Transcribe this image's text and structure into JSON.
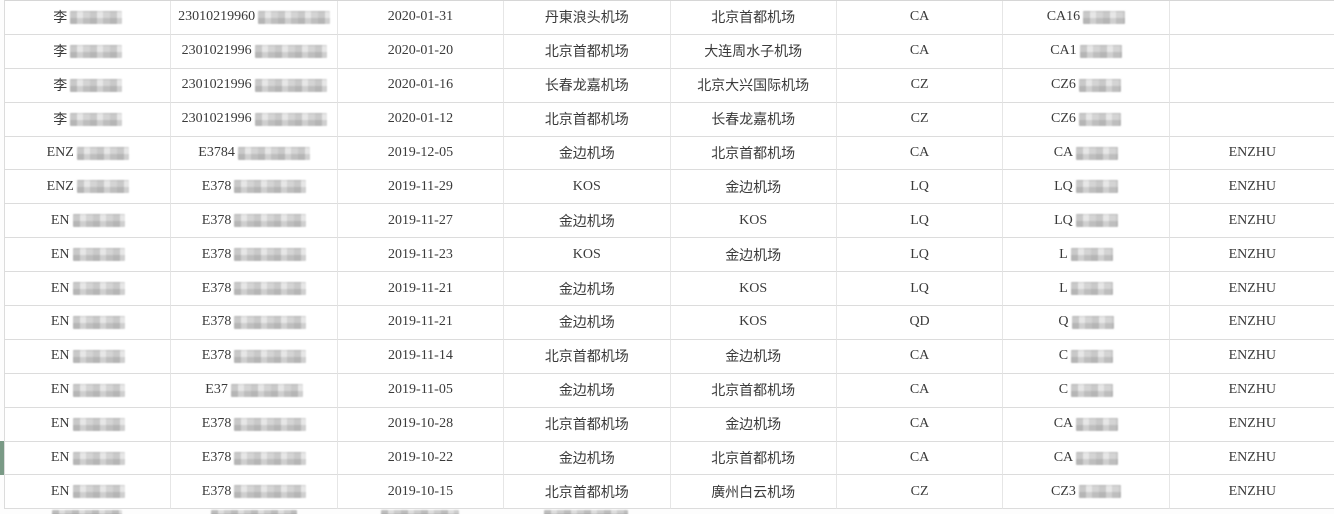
{
  "colors": {
    "accent_green": "#7a9a86",
    "grid_line": "#dcdcdc",
    "text": "#3a3a3a"
  },
  "table": {
    "columns": [
      "passenger-name",
      "id-number",
      "flight-date",
      "departure-airport",
      "arrival-airport",
      "airline-code",
      "flight-number",
      "remark"
    ],
    "rows": [
      {
        "name": "李",
        "name_blur": true,
        "id": "23010219960",
        "id_blur": true,
        "date": "2020-01-31",
        "from": "丹東浪头机场",
        "to": "北京首都机场",
        "airline": "CA",
        "flight": "CA16",
        "flight_blur": true,
        "remark": ""
      },
      {
        "name": "李",
        "name_blur": true,
        "id": "2301021996",
        "id_blur": true,
        "date": "2020-01-20",
        "from": "北京首都机场",
        "to": "大连周水子机场",
        "airline": "CA",
        "flight": "CA1",
        "flight_blur": true,
        "remark": ""
      },
      {
        "name": "李",
        "name_blur": true,
        "id": "2301021996",
        "id_blur": true,
        "date": "2020-01-16",
        "from": "长春龙嘉机场",
        "to": "北京大兴国际机场",
        "airline": "CZ",
        "flight": "CZ6",
        "flight_blur": true,
        "remark": ""
      },
      {
        "name": "李",
        "name_blur": true,
        "id": "2301021996",
        "id_blur": true,
        "date": "2020-01-12",
        "from": "北京首都机场",
        "to": "长春龙嘉机场",
        "airline": "CZ",
        "flight": "CZ6",
        "flight_blur": true,
        "remark": ""
      },
      {
        "name": "ENZ",
        "name_blur": true,
        "id": "E3784",
        "id_blur": true,
        "date": "2019-12-05",
        "from": "金边机场",
        "to": "北京首都机场",
        "airline": "CA",
        "flight": "CA",
        "flight_blur": true,
        "remark": "ENZHU"
      },
      {
        "name": "ENZ",
        "name_blur": true,
        "id": "E378",
        "id_blur": true,
        "date": "2019-11-29",
        "from": "KOS",
        "to": "金边机场",
        "airline": "LQ",
        "flight": "LQ",
        "flight_blur": true,
        "remark": "ENZHU"
      },
      {
        "name": "EN",
        "name_blur": true,
        "id": "E378",
        "id_blur": true,
        "date": "2019-11-27",
        "from": "金边机场",
        "to": "KOS",
        "airline": "LQ",
        "flight": "LQ",
        "flight_blur": true,
        "remark": "ENZHU"
      },
      {
        "name": "EN",
        "name_blur": true,
        "id": "E378",
        "id_blur": true,
        "date": "2019-11-23",
        "from": "KOS",
        "to": "金边机场",
        "airline": "LQ",
        "flight": "L",
        "flight_blur": true,
        "remark": "ENZHU"
      },
      {
        "name": "EN",
        "name_blur": true,
        "id": "E378",
        "id_blur": true,
        "date": "2019-11-21",
        "from": "金边机场",
        "to": "KOS",
        "airline": "LQ",
        "flight": "L",
        "flight_blur": true,
        "remark": "ENZHU"
      },
      {
        "name": "EN",
        "name_blur": true,
        "id": "E378",
        "id_blur": true,
        "date": "2019-11-21",
        "from": "金边机场",
        "to": "KOS",
        "airline": "QD",
        "flight": "Q",
        "flight_blur": true,
        "remark": "ENZHU"
      },
      {
        "name": "EN",
        "name_blur": true,
        "id": "E378",
        "id_blur": true,
        "date": "2019-11-14",
        "from": "北京首都机场",
        "to": "金边机场",
        "airline": "CA",
        "flight": "C",
        "flight_blur": true,
        "remark": "ENZHU"
      },
      {
        "name": "EN",
        "name_blur": true,
        "id": "E37",
        "id_blur": true,
        "date": "2019-11-05",
        "from": "金边机场",
        "to": "北京首都机场",
        "airline": "CA",
        "flight": "C",
        "flight_blur": true,
        "remark": "ENZHU"
      },
      {
        "name": "EN",
        "name_blur": true,
        "id": "E378",
        "id_blur": true,
        "date": "2019-10-28",
        "from": "北京首都机场",
        "to": "金边机场",
        "airline": "CA",
        "flight": "CA",
        "flight_blur": true,
        "remark": "ENZHU"
      },
      {
        "name": "EN",
        "name_blur": true,
        "id": "E378",
        "id_blur": true,
        "date": "2019-10-22",
        "from": "金边机场",
        "to": "北京首都机场",
        "airline": "CA",
        "flight": "CA",
        "flight_blur": true,
        "remark": "ENZHU"
      },
      {
        "name": "EN",
        "name_blur": true,
        "id": "E378",
        "id_blur": true,
        "date": "2019-10-15",
        "from": "北京首都机场",
        "to": "廣州白云机场",
        "airline": "CZ",
        "flight": "CZ3",
        "flight_blur": true,
        "remark": "ENZHU"
      }
    ],
    "partial_row_present": true,
    "edit_marker_row_date": "2019-10-22"
  }
}
